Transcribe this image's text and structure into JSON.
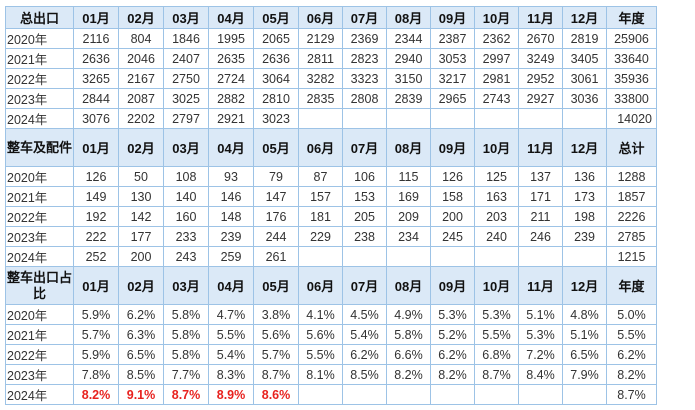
{
  "section1": {
    "header": [
      "总出口",
      "01月",
      "02月",
      "03月",
      "04月",
      "05月",
      "06月",
      "07月",
      "08月",
      "09月",
      "10月",
      "11月",
      "12月",
      "年度"
    ],
    "rows": [
      [
        "2020年",
        "2116",
        "804",
        "1846",
        "1995",
        "2065",
        "2129",
        "2369",
        "2344",
        "2387",
        "2362",
        "2670",
        "2819",
        "25906"
      ],
      [
        "2021年",
        "2636",
        "2046",
        "2407",
        "2635",
        "2636",
        "2811",
        "2823",
        "2940",
        "3053",
        "2997",
        "3249",
        "3405",
        "33640"
      ],
      [
        "2022年",
        "3265",
        "2167",
        "2750",
        "2724",
        "3064",
        "3282",
        "3323",
        "3150",
        "3217",
        "2981",
        "2952",
        "3061",
        "35936"
      ],
      [
        "2023年",
        "2844",
        "2087",
        "3025",
        "2882",
        "2810",
        "2835",
        "2808",
        "2839",
        "2965",
        "2743",
        "2927",
        "3036",
        "33800"
      ],
      [
        "2024年",
        "3076",
        "2202",
        "2797",
        "2921",
        "3023",
        "",
        "",
        "",
        "",
        "",
        "",
        "",
        "14020"
      ]
    ]
  },
  "section2": {
    "header": [
      "整车及配件",
      "01月",
      "02月",
      "03月",
      "04月",
      "05月",
      "06月",
      "07月",
      "08月",
      "09月",
      "10月",
      "11月",
      "12月",
      "总计"
    ],
    "rows": [
      [
        "2020年",
        "126",
        "50",
        "108",
        "93",
        "79",
        "87",
        "106",
        "115",
        "126",
        "125",
        "137",
        "136",
        "1288"
      ],
      [
        "2021年",
        "149",
        "130",
        "140",
        "146",
        "147",
        "157",
        "153",
        "169",
        "158",
        "163",
        "171",
        "173",
        "1857"
      ],
      [
        "2022年",
        "192",
        "142",
        "160",
        "148",
        "176",
        "181",
        "205",
        "209",
        "200",
        "203",
        "211",
        "198",
        "2226"
      ],
      [
        "2023年",
        "222",
        "177",
        "233",
        "239",
        "244",
        "229",
        "238",
        "234",
        "245",
        "240",
        "246",
        "239",
        "2785"
      ],
      [
        "2024年",
        "252",
        "200",
        "243",
        "259",
        "261",
        "",
        "",
        "",
        "",
        "",
        "",
        "",
        "1215"
      ]
    ]
  },
  "section3": {
    "header": [
      "整车出口占比",
      "01月",
      "02月",
      "03月",
      "04月",
      "05月",
      "06月",
      "07月",
      "08月",
      "09月",
      "10月",
      "11月",
      "12月",
      "年度"
    ],
    "rows": [
      [
        "2020年",
        "5.9%",
        "6.2%",
        "5.8%",
        "4.7%",
        "3.8%",
        "4.1%",
        "4.5%",
        "4.9%",
        "5.3%",
        "5.3%",
        "5.1%",
        "4.8%",
        "5.0%"
      ],
      [
        "2021年",
        "5.7%",
        "6.3%",
        "5.8%",
        "5.5%",
        "5.6%",
        "5.6%",
        "5.4%",
        "5.8%",
        "5.2%",
        "5.5%",
        "5.3%",
        "5.1%",
        "5.5%"
      ],
      [
        "2022年",
        "5.9%",
        "6.5%",
        "5.8%",
        "5.4%",
        "5.7%",
        "5.5%",
        "6.2%",
        "6.6%",
        "6.2%",
        "6.8%",
        "7.2%",
        "6.5%",
        "6.2%"
      ],
      [
        "2023年",
        "7.8%",
        "8.5%",
        "7.7%",
        "8.3%",
        "8.7%",
        "8.1%",
        "8.5%",
        "8.2%",
        "8.2%",
        "8.7%",
        "8.4%",
        "7.9%",
        "8.2%"
      ],
      [
        "2024年",
        "8.2%",
        "9.1%",
        "8.7%",
        "8.9%",
        "8.6%",
        "",
        "",
        "",
        "",
        "",
        "",
        "",
        "8.7%"
      ]
    ]
  },
  "highlight_color": "#e8211e",
  "header_bg": "#dbe9f7",
  "border_color": "#9dc3e6"
}
